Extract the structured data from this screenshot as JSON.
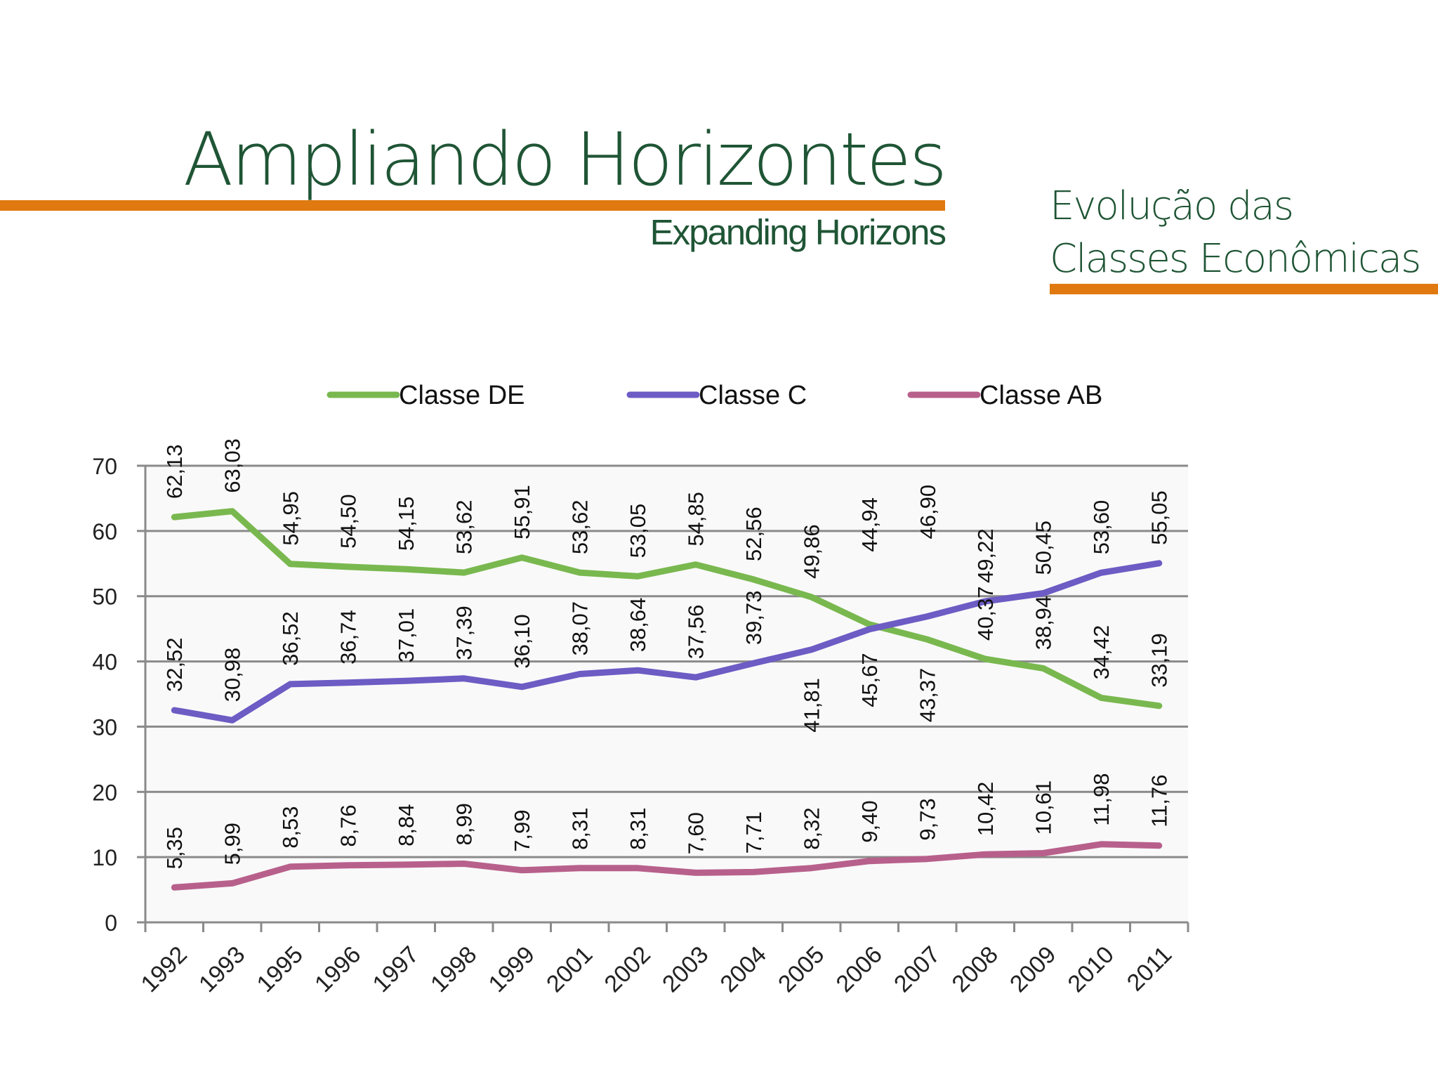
{
  "header": {
    "title": "Ampliando Horizontes",
    "subtitle": "Expanding Horizons",
    "side_title_line1": "Evolução das",
    "side_title_line2": "Classes Econômicas",
    "accent_color": "#e07a10",
    "title_color": "#1f5535"
  },
  "chart_data": {
    "type": "line",
    "categories": [
      "1992",
      "1993",
      "1995",
      "1996",
      "1997",
      "1998",
      "1999",
      "2001",
      "2002",
      "2003",
      "2004",
      "2005",
      "2006",
      "2007",
      "2008",
      "2009",
      "2010",
      "2011"
    ],
    "ylim": [
      0,
      70
    ],
    "yticks": [
      "0",
      "10",
      "20",
      "30",
      "40",
      "50",
      "60",
      "70"
    ],
    "grid": true,
    "legend_position": "top",
    "series": [
      {
        "name": "Classe DE",
        "color": "#79b84f",
        "values": [
          62.13,
          63.03,
          54.95,
          54.5,
          54.15,
          53.62,
          55.91,
          53.62,
          53.05,
          54.85,
          52.56,
          49.86,
          45.67,
          43.37,
          40.37,
          38.94,
          34.42,
          33.19
        ],
        "labels": [
          "62,13",
          "63,03",
          "54,95",
          "54,50",
          "54,15",
          "53,62",
          "55,91",
          "53,62",
          "53,05",
          "54,85",
          "52,56",
          "49,86",
          "45,67",
          "43,37",
          "40,37",
          "38,94",
          "34,42",
          "33,19"
        ]
      },
      {
        "name": "Classe C",
        "color": "#6c5cc4",
        "values": [
          32.52,
          30.98,
          36.52,
          36.74,
          37.01,
          37.39,
          36.1,
          38.07,
          38.64,
          37.56,
          39.73,
          41.81,
          44.94,
          46.9,
          49.22,
          50.45,
          53.6,
          55.05
        ],
        "labels": [
          "32,52",
          "30,98",
          "36,52",
          "36,74",
          "37,01",
          "37,39",
          "36,10",
          "38,07",
          "38,64",
          "37,56",
          "39,73",
          "41,81",
          "44,94",
          "46,90",
          "49,22",
          "50,45",
          "53,60",
          "55,05"
        ]
      },
      {
        "name": "Classe AB",
        "color": "#b8608c",
        "values": [
          5.35,
          5.99,
          8.53,
          8.76,
          8.84,
          8.99,
          7.99,
          8.31,
          8.31,
          7.6,
          7.71,
          8.32,
          9.4,
          9.73,
          10.42,
          10.61,
          11.98,
          11.76
        ],
        "labels": [
          "5,35",
          "5,99",
          "8,53",
          "8,76",
          "8,84",
          "8,99",
          "7,99",
          "8,31",
          "8,31",
          "7,60",
          "7,71",
          "8,32",
          "9,40",
          "9,73",
          "10,42",
          "10,61",
          "11,98",
          "11,76"
        ]
      }
    ]
  }
}
